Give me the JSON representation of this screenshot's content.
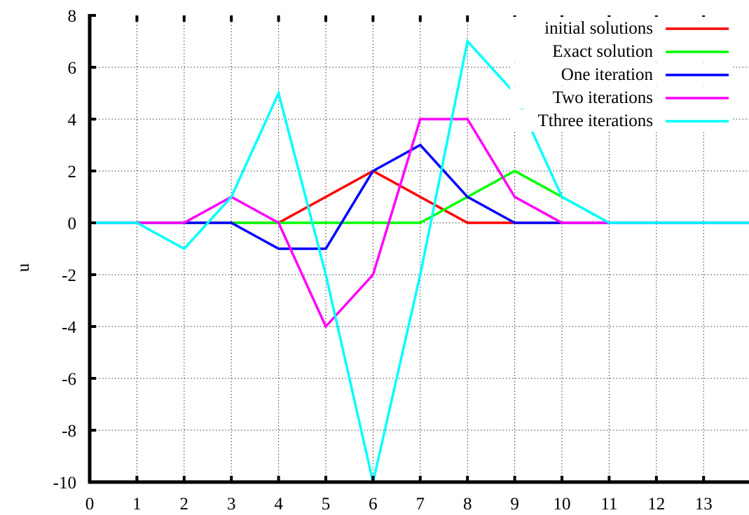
{
  "chart_data": {
    "type": "line",
    "title": "",
    "xlabel": "",
    "ylabel": "u",
    "xlim": [
      0,
      14
    ],
    "ylim": [
      -10,
      8
    ],
    "x_ticks": [
      0,
      1,
      2,
      3,
      4,
      5,
      6,
      7,
      8,
      9,
      10,
      11,
      12,
      13
    ],
    "y_ticks": [
      8,
      6,
      4,
      2,
      0,
      -2,
      -4,
      -6,
      -8,
      -10
    ],
    "grid": true,
    "legend_position": "top-right",
    "x": [
      0,
      1,
      2,
      3,
      4,
      5,
      6,
      7,
      8,
      9,
      10,
      11,
      12,
      13,
      14
    ],
    "series": [
      {
        "name": "initial solutions",
        "color": "#ff0000",
        "values": [
          0,
          0,
          0,
          0,
          0,
          1,
          2,
          1,
          0,
          0,
          0,
          0,
          0,
          0,
          0
        ]
      },
      {
        "name": "Exact solution",
        "color": "#00ff00",
        "values": [
          0,
          0,
          0,
          0,
          0,
          0,
          0,
          0,
          1,
          2,
          1,
          0,
          0,
          0,
          0
        ]
      },
      {
        "name": "One iteration",
        "color": "#0000ff",
        "values": [
          0,
          0,
          0,
          0,
          -1,
          -1,
          2,
          3,
          1,
          0,
          0,
          0,
          0,
          0,
          0
        ]
      },
      {
        "name": "Two iterations",
        "color": "#ff00ff",
        "values": [
          0,
          0,
          0,
          1,
          0,
          -4,
          -2,
          4,
          4,
          1,
          0,
          0,
          0,
          0,
          0
        ]
      },
      {
        "name": "Tthree iterations",
        "color": "#00ffff",
        "values": [
          0,
          0,
          -1,
          1,
          5,
          -2,
          -10,
          -2,
          7,
          5,
          1,
          0,
          0,
          0,
          0
        ]
      }
    ]
  }
}
